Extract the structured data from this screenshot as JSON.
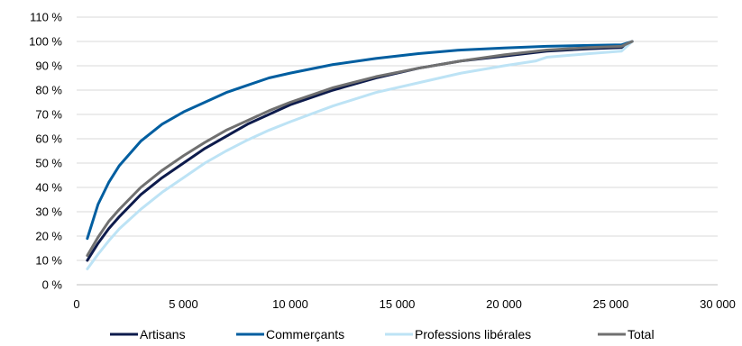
{
  "chart_data": {
    "type": "line",
    "title": "",
    "xlabel": "",
    "ylabel": "",
    "xlim": [
      0,
      30000
    ],
    "ylim": [
      0,
      110
    ],
    "grid": "horizontal",
    "legend_position": "bottom",
    "x_tick_labels": [
      "0",
      "5 000",
      "10 000",
      "15 000",
      "20 000",
      "25 000",
      "30 000"
    ],
    "y_tick_labels": [
      "0 %",
      "10 %",
      "20 %",
      "30 %",
      "40 %",
      "50 %",
      "60 %",
      "70 %",
      "80 %",
      "90 %",
      "100 %",
      "110 %"
    ],
    "series": [
      {
        "name": "Artisans",
        "color": "#0d1b4c",
        "x": [
          500,
          1000,
          1500,
          2000,
          3000,
          4000,
          5000,
          6000,
          7000,
          8000,
          9000,
          10000,
          12000,
          14000,
          16000,
          18000,
          20000,
          22000,
          24000,
          25500,
          26000
        ],
        "y": [
          10,
          17,
          23,
          28,
          37,
          44,
          50,
          56,
          61,
          66,
          70,
          74,
          80,
          85,
          89,
          92,
          94,
          96,
          97,
          97.5,
          100
        ]
      },
      {
        "name": "Commerçants",
        "color": "#005ea0",
        "x": [
          500,
          1000,
          1500,
          2000,
          3000,
          4000,
          5000,
          6000,
          7000,
          8000,
          9000,
          10000,
          12000,
          14000,
          16000,
          18000,
          20000,
          22000,
          24000,
          25500,
          26000
        ],
        "y": [
          19,
          33,
          42,
          49,
          59,
          66,
          71,
          75,
          79,
          82,
          85,
          87,
          90.5,
          93,
          95,
          96.5,
          97.3,
          98,
          98.4,
          98.6,
          100
        ]
      },
      {
        "name": "Professions libérales",
        "color": "#bde3f5",
        "x": [
          500,
          1000,
          1500,
          2000,
          3000,
          4000,
          5000,
          6000,
          7000,
          8000,
          9000,
          10000,
          12000,
          14000,
          16000,
          18000,
          20000,
          21500,
          22000,
          24000,
          25500,
          26000
        ],
        "y": [
          6.5,
          12.5,
          18,
          23,
          31,
          38,
          44,
          50,
          55,
          59.5,
          63.5,
          67,
          73.5,
          79,
          83,
          87,
          90,
          92,
          93.5,
          95,
          96,
          100
        ]
      },
      {
        "name": "Total",
        "color": "#707070",
        "x": [
          500,
          1000,
          1500,
          2000,
          3000,
          4000,
          5000,
          6000,
          7000,
          8000,
          9000,
          10000,
          12000,
          14000,
          16000,
          18000,
          20000,
          22000,
          24000,
          25500,
          26000
        ],
        "y": [
          12,
          19.5,
          26,
          31,
          40,
          47,
          53,
          58.5,
          63.5,
          67.5,
          71.5,
          75,
          81,
          85.5,
          89,
          92,
          94.5,
          96.5,
          97.5,
          98,
          100
        ]
      }
    ]
  }
}
